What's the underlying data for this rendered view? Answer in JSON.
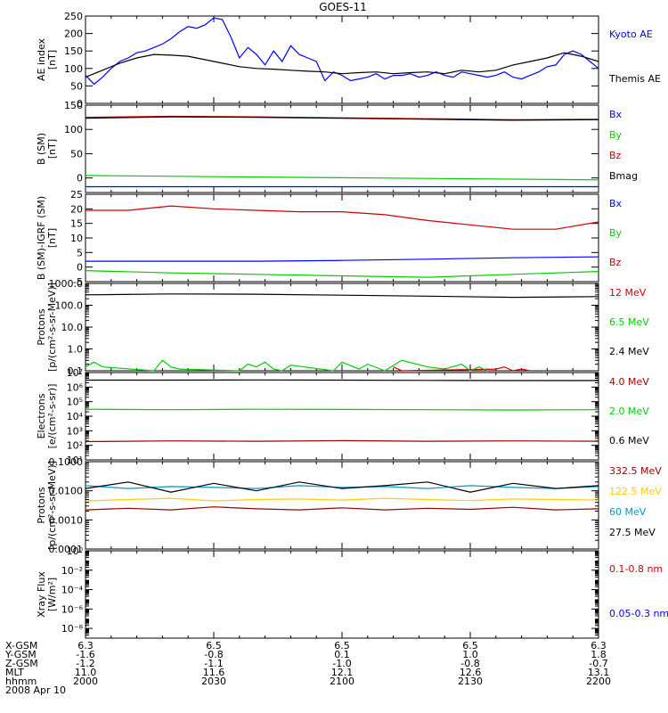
{
  "title": "GOES-11",
  "chart_data": [
    {
      "type": "line",
      "ylabel": "AE index\n[nT]",
      "ylim": [
        0,
        250
      ],
      "yscale": "linear",
      "yticks": [
        0,
        50,
        100,
        150,
        200,
        250
      ],
      "ytick_labels": [
        "0",
        "50",
        "100",
        "150",
        "200",
        "250"
      ],
      "series": [
        {
          "name": "Kyoto AE",
          "color": "#0000ff",
          "x": [
            0,
            1,
            2,
            3,
            4,
            5,
            6,
            7,
            8,
            9,
            10,
            11,
            12,
            13,
            14,
            15,
            16,
            17,
            18,
            19,
            20,
            21,
            22,
            23,
            24,
            25,
            26,
            27,
            28,
            29,
            30,
            31,
            32,
            33,
            34,
            35,
            36,
            37,
            38,
            39,
            40,
            41,
            42,
            43,
            44,
            45,
            46,
            47,
            48,
            49,
            50,
            51,
            52,
            53,
            54,
            55,
            56,
            57,
            58,
            59,
            60
          ],
          "y": [
            80,
            55,
            75,
            100,
            120,
            130,
            145,
            150,
            160,
            170,
            185,
            205,
            220,
            215,
            225,
            245,
            240,
            190,
            130,
            160,
            140,
            110,
            150,
            120,
            165,
            140,
            130,
            120,
            65,
            90,
            80,
            65,
            70,
            75,
            85,
            70,
            80,
            80,
            85,
            75,
            80,
            90,
            80,
            75,
            90,
            85,
            80,
            75,
            80,
            90,
            75,
            70,
            80,
            90,
            105,
            110,
            140,
            150,
            140,
            120,
            100
          ]
        },
        {
          "name": "Themis AE",
          "color": "#000000",
          "x": [
            0,
            2,
            4,
            6,
            8,
            10,
            12,
            14,
            16,
            18,
            20,
            22,
            24,
            26,
            28,
            30,
            32,
            34,
            36,
            38,
            40,
            42,
            44,
            46,
            48,
            50,
            52,
            54,
            56,
            58,
            60
          ],
          "y": [
            75,
            95,
            115,
            130,
            140,
            138,
            135,
            125,
            115,
            105,
            100,
            98,
            95,
            92,
            90,
            85,
            88,
            90,
            85,
            88,
            90,
            85,
            95,
            90,
            95,
            110,
            120,
            130,
            145,
            135,
            120
          ]
        }
      ],
      "legend": [
        "Kyoto AE",
        "Themis AE"
      ]
    },
    {
      "type": "line",
      "ylabel": "B (SM)\n[nT]",
      "ylim": [
        -30,
        150
      ],
      "yscale": "linear",
      "yticks": [
        0,
        50,
        100,
        150
      ],
      "ytick_labels": [
        "0",
        "50",
        "100",
        "150"
      ],
      "series": [
        {
          "name": "Bx",
          "color": "#0000ff",
          "x": [
            0,
            60
          ],
          "y": [
            -18,
            -18
          ]
        },
        {
          "name": "By",
          "color": "#00cc00",
          "x": [
            0,
            20,
            40,
            60
          ],
          "y": [
            5,
            2,
            -1,
            -4
          ]
        },
        {
          "name": "Bz",
          "color": "#cc0000",
          "x": [
            0,
            10,
            20,
            30,
            40,
            50,
            60
          ],
          "y": [
            125,
            127,
            126,
            124,
            122,
            120,
            121
          ]
        },
        {
          "name": "Bmag",
          "color": "#000000",
          "x": [
            0,
            10,
            20,
            30,
            40,
            50,
            60
          ],
          "y": [
            123,
            126,
            125,
            123,
            121,
            119,
            120
          ]
        }
      ],
      "legend": [
        "Bx",
        "By",
        "Bz",
        "Bmag"
      ]
    },
    {
      "type": "line",
      "ylabel": "B (SM)-IGRF (SM)\n[nT]",
      "ylim": [
        -5,
        25
      ],
      "yscale": "linear",
      "yticks": [
        -5,
        0,
        5,
        10,
        15,
        20,
        25
      ],
      "ytick_labels": [
        "-5",
        "0",
        "5",
        "10",
        "15",
        "20",
        "25"
      ],
      "series": [
        {
          "name": "Bx",
          "color": "#0000ff",
          "x": [
            0,
            10,
            20,
            30,
            40,
            50,
            60
          ],
          "y": [
            2,
            2,
            2,
            2.3,
            2.7,
            3.2,
            3.5
          ]
        },
        {
          "name": "By",
          "color": "#00cc00",
          "x": [
            0,
            10,
            20,
            30,
            40,
            50,
            60
          ],
          "y": [
            -1.2,
            -2,
            -2.5,
            -3,
            -3.5,
            -2.5,
            -1.5
          ]
        },
        {
          "name": "Bz",
          "color": "#cc0000",
          "x": [
            0,
            5,
            10,
            15,
            20,
            25,
            30,
            35,
            40,
            45,
            50,
            55,
            60
          ],
          "y": [
            19.5,
            19.5,
            21,
            20,
            19.5,
            19,
            19,
            18,
            16,
            14.5,
            13,
            13,
            15.5
          ]
        }
      ],
      "legend": [
        "Bx",
        "By",
        "Bz"
      ]
    },
    {
      "type": "line",
      "ylabel": "Protons\n[p/(cm²-s-sr-MeV)]",
      "ylim": [
        0.1,
        1000
      ],
      "yscale": "log",
      "yticks": [
        0.1,
        1,
        10,
        100,
        1000
      ],
      "ytick_labels": [
        "0.1",
        "1.0",
        "10.0",
        "100.0",
        "1000.0"
      ],
      "series": [
        {
          "name": "12 MeV",
          "color": "#cc0000",
          "x": [
            36,
            37,
            48,
            49,
            50,
            51,
            52
          ],
          "y": [
            0.15,
            0.1,
            0.12,
            0.15,
            0.1,
            0.12,
            0.1
          ]
        },
        {
          "name": "6.5 MeV",
          "color": "#00cc00",
          "x": [
            0,
            1,
            2,
            8,
            9,
            10,
            11,
            18,
            19,
            20,
            21,
            22,
            23,
            24,
            29,
            30,
            32,
            33,
            35,
            37,
            40,
            42,
            44,
            45,
            46,
            47
          ],
          "y": [
            0.15,
            0.25,
            0.15,
            0.1,
            0.3,
            0.15,
            0.12,
            0.1,
            0.2,
            0.15,
            0.25,
            0.12,
            0.1,
            0.18,
            0.1,
            0.25,
            0.12,
            0.2,
            0.1,
            0.3,
            0.15,
            0.12,
            0.2,
            0.1,
            0.15,
            0.1
          ]
        },
        {
          "name": "2.4 MeV",
          "color": "#000000",
          "x": [
            0,
            10,
            20,
            30,
            40,
            50,
            60
          ],
          "y": [
            300,
            330,
            320,
            290,
            260,
            230,
            250
          ]
        }
      ],
      "legend": [
        "12 MeV",
        "6.5 MeV",
        "2.4 MeV"
      ]
    },
    {
      "type": "line",
      "ylabel": "Electrons\n[e/(cm²-s-sr)]",
      "ylim": [
        10,
        10000000
      ],
      "yscale": "log",
      "yticks": [
        10,
        100,
        1000,
        10000,
        100000,
        1000000,
        10000000
      ],
      "ytick_labels": [
        "10¹",
        "10²",
        "10³",
        "10⁴",
        "10⁵",
        "10⁶",
        "10⁷"
      ],
      "series": [
        {
          "name": "4.0 MeV",
          "color": "#990000",
          "x": [
            0,
            10,
            20,
            30,
            40,
            50,
            60
          ],
          "y": [
            180,
            200,
            190,
            210,
            190,
            200,
            190
          ]
        },
        {
          "name": "2.0 MeV",
          "color": "#00cc00",
          "x": [
            0,
            10,
            20,
            30,
            40,
            50,
            60
          ],
          "y": [
            30000,
            28000,
            30000,
            29000,
            28000,
            27000,
            28000
          ]
        },
        {
          "name": "0.6 MeV",
          "color": "#000000",
          "x": [
            0,
            10,
            20,
            30,
            40,
            50,
            60
          ],
          "y": [
            3000000,
            3000000,
            3100000,
            3000000,
            2900000,
            2800000,
            2800000
          ]
        }
      ],
      "legend": [
        "4.0 MeV",
        "2.0 MeV",
        "0.6 MeV"
      ]
    },
    {
      "type": "line",
      "ylabel": "Protons\n[p/(cm²-s-sr-MeV)]",
      "ylim": [
        0.0001,
        0.1
      ],
      "yscale": "log",
      "yticks": [
        0.0001,
        0.001,
        0.01,
        0.1
      ],
      "ytick_labels": [
        "0.0001",
        "0.0010",
        "0.0100",
        "0.1000"
      ],
      "series": [
        {
          "name": "332.5 MeV",
          "color": "#990000",
          "x": [
            0,
            5,
            10,
            15,
            20,
            25,
            30,
            35,
            40,
            45,
            50,
            55,
            60
          ],
          "y": [
            0.0022,
            0.0025,
            0.0022,
            0.0028,
            0.0024,
            0.0022,
            0.0026,
            0.0022,
            0.0025,
            0.0023,
            0.0027,
            0.0022,
            0.0024
          ]
        },
        {
          "name": "122.5 MeV",
          "color": "#ffcc00",
          "x": [
            0,
            5,
            10,
            15,
            20,
            25,
            30,
            35,
            40,
            45,
            50,
            55,
            60
          ],
          "y": [
            0.0045,
            0.005,
            0.0055,
            0.0045,
            0.005,
            0.0052,
            0.0048,
            0.0055,
            0.005,
            0.0046,
            0.0052,
            0.005,
            0.0048
          ]
        },
        {
          "name": "60 MeV",
          "color": "#0099cc",
          "x": [
            0,
            5,
            10,
            15,
            20,
            25,
            30,
            35,
            40,
            45,
            50,
            55,
            60
          ],
          "y": [
            0.015,
            0.012,
            0.014,
            0.013,
            0.012,
            0.015,
            0.013,
            0.014,
            0.012,
            0.015,
            0.013,
            0.012,
            0.014
          ]
        },
        {
          "name": "27.5 MeV",
          "color": "#000000",
          "x": [
            0,
            5,
            10,
            15,
            20,
            25,
            30,
            35,
            40,
            45,
            50,
            55,
            60
          ],
          "y": [
            0.012,
            0.02,
            0.009,
            0.018,
            0.01,
            0.02,
            0.012,
            0.015,
            0.02,
            0.009,
            0.018,
            0.012,
            0.015
          ]
        }
      ],
      "legend": [
        "332.5 MeV",
        "122.5 MeV",
        "60 MeV",
        "27.5 MeV"
      ]
    },
    {
      "type": "line",
      "ylabel": "Xray Flux\n[W/m²]",
      "ylim": [
        1e-09,
        1
      ],
      "yscale": "log",
      "yticks": [
        1e-08,
        1e-06,
        0.0001,
        0.01,
        1
      ],
      "ytick_labels": [
        "10⁻⁸",
        "10⁻⁶",
        "10⁻⁴",
        "10⁻²",
        "10⁰"
      ],
      "series": [
        {
          "name": "0.1-0.8 nm",
          "color": "#cc0000",
          "x": [],
          "y": []
        },
        {
          "name": "0.05-0.3 nm",
          "color": "#0000ff",
          "x": [],
          "y": []
        }
      ],
      "legend": [
        "0.1-0.8 nm",
        "0.05-0.3 nm"
      ]
    }
  ],
  "x_axis": {
    "xlim": [
      0,
      60
    ],
    "tick_positions": [
      0,
      15,
      30,
      45,
      60
    ],
    "rows": [
      {
        "label": "X-GSM",
        "values": [
          "6.3",
          "6.5",
          "6.5",
          "6.5",
          "6.3"
        ]
      },
      {
        "label": "Y-GSM",
        "values": [
          "-1.6",
          "-0.8",
          "0.1",
          "1.0",
          "1.8"
        ]
      },
      {
        "label": "Z-GSM",
        "values": [
          "-1.2",
          "-1.1",
          "-1.0",
          "-0.8",
          "-0.7"
        ]
      },
      {
        "label": "MLT",
        "values": [
          "11.0",
          "11.6",
          "12.1",
          "12.6",
          "13.1"
        ]
      },
      {
        "label": "hhmm",
        "values": [
          "2000",
          "2030",
          "2100",
          "2130",
          "2200"
        ]
      }
    ],
    "date": "2008 Apr 10"
  }
}
